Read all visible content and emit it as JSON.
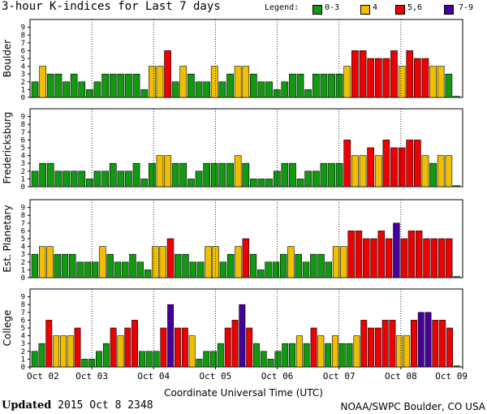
{
  "title": "3-hour K-indices for Last 7 days",
  "legend": {
    "label": "Legend:",
    "entries": [
      {
        "label": "0-3",
        "color": "#119911"
      },
      {
        "label": "4",
        "color": "#f0c000"
      },
      {
        "label": "5,6",
        "color": "#ee0000"
      },
      {
        "label": "7-9",
        "color": "#440099"
      }
    ]
  },
  "footer": {
    "updated_label": "Updated",
    "updated_value": "2015 Oct  8 2348",
    "source": "NOAA/SWPC Boulder, CO USA"
  },
  "chart_data": {
    "type": "bar",
    "xlabel": "Coordinate Universal Time (UTC)",
    "x_ticks": [
      "Oct 02",
      "Oct 03",
      "Oct 04",
      "Oct 05",
      "Oct 06",
      "Oct 07",
      "Oct 08",
      "Oct 09"
    ],
    "ylim": [
      0,
      9
    ],
    "y_ticks": [
      0,
      1,
      2,
      3,
      4,
      5,
      6,
      7,
      8,
      9
    ],
    "panels": [
      {
        "name": "Boulder",
        "values": [
          2,
          4,
          3,
          3,
          2,
          3,
          2,
          1,
          2,
          3,
          3,
          3,
          3,
          3,
          1,
          4,
          4,
          6,
          2,
          4,
          3,
          2,
          2,
          4,
          2,
          3,
          4,
          4,
          3,
          2,
          2,
          1,
          2,
          3,
          3,
          1,
          3,
          3,
          3,
          3,
          4,
          6,
          6,
          5,
          5,
          5,
          6,
          4,
          6,
          5,
          5,
          4,
          4,
          3,
          0
        ]
      },
      {
        "name": "Fredericksburg",
        "values": [
          2,
          3,
          3,
          2,
          2,
          2,
          2,
          1,
          2,
          2,
          3,
          2,
          2,
          3,
          1,
          3,
          4,
          4,
          3,
          3,
          1,
          2,
          3,
          3,
          3,
          3,
          4,
          3,
          1,
          1,
          1,
          2,
          3,
          3,
          1,
          2,
          2,
          3,
          3,
          3,
          6,
          4,
          4,
          5,
          4,
          6,
          5,
          5,
          6,
          6,
          4,
          3,
          4,
          4,
          0
        ]
      },
      {
        "name": "Est. Planetary",
        "values": [
          3,
          4,
          4,
          3,
          3,
          3,
          2,
          2,
          2,
          4,
          3,
          2,
          2,
          3,
          2,
          1,
          4,
          4,
          5,
          3,
          3,
          2,
          2,
          4,
          4,
          2,
          3,
          4,
          5,
          3,
          1,
          2,
          2,
          3,
          4,
          3,
          2,
          3,
          3,
          2,
          4,
          4,
          6,
          6,
          5,
          5,
          6,
          5,
          7,
          5,
          6,
          6,
          5,
          5,
          5,
          5,
          0
        ]
      },
      {
        "name": "College",
        "values": [
          2,
          3,
          6,
          4,
          4,
          4,
          5,
          1,
          1,
          2,
          3,
          5,
          4,
          5,
          6,
          2,
          2,
          2,
          5,
          8,
          5,
          5,
          4,
          1,
          2,
          2,
          3,
          5,
          6,
          8,
          5,
          3,
          2,
          1,
          2,
          3,
          3,
          4,
          3,
          5,
          4,
          3,
          4,
          3,
          3,
          4,
          6,
          5,
          5,
          6,
          6,
          4,
          4,
          6,
          7,
          7,
          6,
          6,
          5,
          0
        ]
      }
    ]
  }
}
